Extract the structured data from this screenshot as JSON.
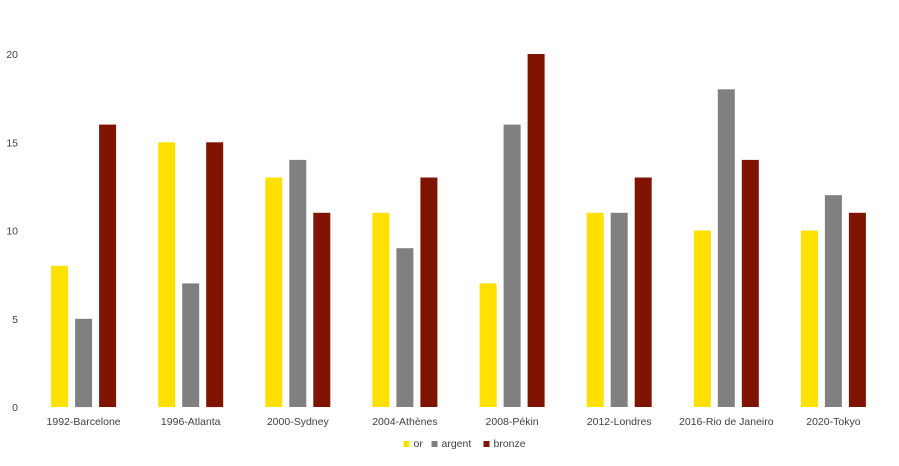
{
  "chart_data": {
    "type": "bar",
    "title": "",
    "xlabel": "",
    "ylabel": "",
    "categories": [
      "1992-Barcelone",
      "1996-Atlanta",
      "2000-Sydney",
      "2004-Athènes",
      "2008-Pékin",
      "2012-Londres",
      "2016-Rio de Janeiro",
      "2020-Tokyo"
    ],
    "series": [
      {
        "name": "or",
        "color": "#FFE000",
        "values": [
          8,
          15,
          13,
          11,
          7,
          11,
          10,
          10
        ]
      },
      {
        "name": "argent",
        "color": "#808080",
        "values": [
          5,
          7,
          14,
          9,
          16,
          11,
          18,
          12
        ]
      },
      {
        "name": "bronze",
        "color": "#7F1500",
        "values": [
          16,
          15,
          11,
          13,
          20,
          13,
          14,
          11
        ]
      }
    ],
    "ylim": [
      0,
      20
    ],
    "yticks": [
      "0",
      "5",
      "10",
      "15",
      "20"
    ],
    "grid": false,
    "legend_position": "bottom-center"
  }
}
